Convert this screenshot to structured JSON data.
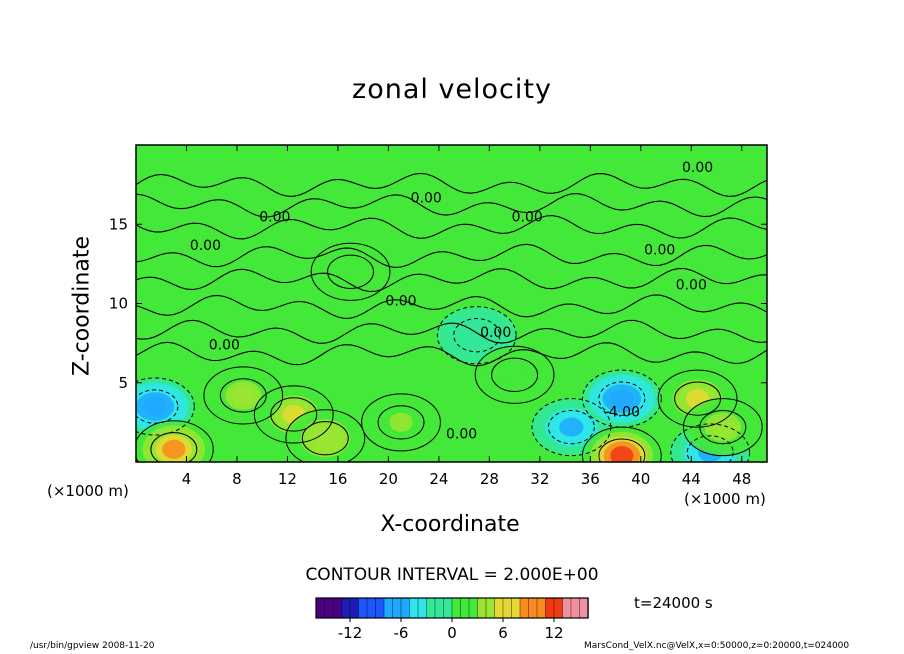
{
  "chart_data": {
    "type": "heatmap",
    "title": "zonal velocity",
    "xlabel": "X-coordinate",
    "ylabel": "Z-coordinate",
    "x_unit_label": "(×1000 m)",
    "x_ticks": [
      4,
      8,
      12,
      16,
      20,
      24,
      28,
      32,
      36,
      40,
      44,
      48
    ],
    "y_ticks": [
      5,
      10,
      15
    ],
    "xlim": [
      0,
      50
    ],
    "ylim": [
      0,
      20
    ],
    "contour_interval_text": "CONTOUR INTERVAL = 2.000E+00",
    "contour_labels": [
      {
        "text": "0.00",
        "x": 44.5,
        "z": 18.6
      },
      {
        "text": "0.00",
        "x": 23.0,
        "z": 16.7
      },
      {
        "text": "0.00",
        "x": 11.0,
        "z": 15.5
      },
      {
        "text": "0.00",
        "x": 31.0,
        "z": 15.5
      },
      {
        "text": "0.00",
        "x": 5.5,
        "z": 13.7
      },
      {
        "text": "0.00",
        "x": 41.5,
        "z": 13.4
      },
      {
        "text": "0.00",
        "x": 44.0,
        "z": 11.2
      },
      {
        "text": "0.00",
        "x": 21.0,
        "z": 10.2
      },
      {
        "text": "0.00",
        "x": 28.5,
        "z": 8.2
      },
      {
        "text": "0.00",
        "x": 7.0,
        "z": 7.4
      },
      {
        "text": "0.00",
        "x": 25.8,
        "z": 1.8
      },
      {
        "text": "-4.00",
        "x": 38.5,
        "z": 3.2
      }
    ],
    "field_features": [
      {
        "x": 1.5,
        "z": 3.5,
        "value": -8
      },
      {
        "x": 3.0,
        "z": 0.8,
        "value": 8
      },
      {
        "x": 12.5,
        "z": 3.0,
        "value": 6
      },
      {
        "x": 8.5,
        "z": 4.2,
        "value": 4
      },
      {
        "x": 15.0,
        "z": 1.5,
        "value": 5
      },
      {
        "x": 21.0,
        "z": 2.5,
        "value": 3
      },
      {
        "x": 34.5,
        "z": 2.2,
        "value": -6
      },
      {
        "x": 38.5,
        "z": 4.0,
        "value": -8
      },
      {
        "x": 38.5,
        "z": 0.4,
        "value": 12
      },
      {
        "x": 44.5,
        "z": 4.0,
        "value": 6
      },
      {
        "x": 45.5,
        "z": 0.6,
        "value": -6
      },
      {
        "x": 46.5,
        "z": 2.2,
        "value": 4
      },
      {
        "x": 27.0,
        "z": 8.0,
        "value": -2
      },
      {
        "x": 17.0,
        "z": 12.0,
        "value": 1
      },
      {
        "x": 30.0,
        "z": 5.5,
        "value": 2
      }
    ],
    "colorbar": {
      "ticks": [
        -12,
        -6,
        0,
        6,
        12
      ],
      "range": [
        -16,
        16
      ],
      "colors": [
        "#4b0082",
        "#1d1db4",
        "#1f57ff",
        "#1fa8ff",
        "#2ee6ea",
        "#33e898",
        "#44e838",
        "#9be532",
        "#e6d832",
        "#fa8a1e",
        "#f03a14",
        "#f08fa0"
      ]
    },
    "time_label": "t=24000 s"
  },
  "footer": {
    "left": "/usr/bin/gpview  2008-11-20",
    "right": "MarsCond_VelX.nc@VelX,x=0:50000,z=0:20000,t=024000"
  }
}
